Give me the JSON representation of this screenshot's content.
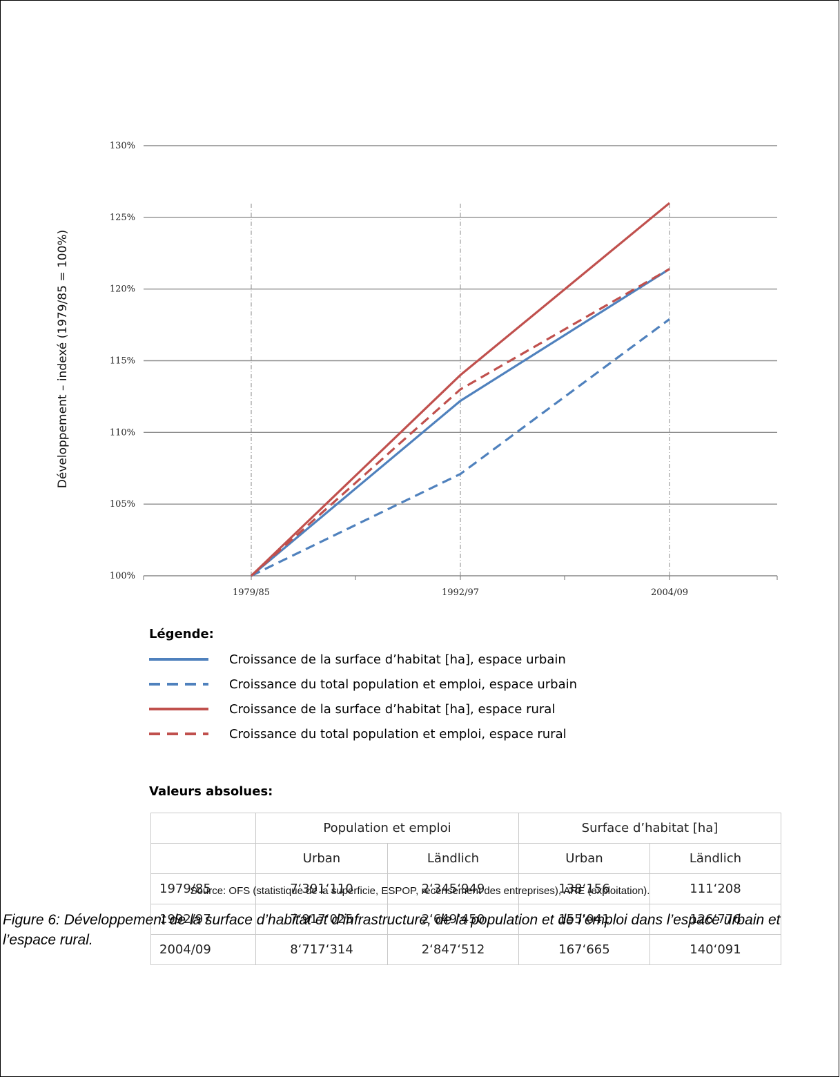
{
  "chart_data": {
    "type": "line",
    "x": [
      "1979/85",
      "1992/97",
      "2004/09"
    ],
    "ylabel": "Développement – indexé (1979/85 = 100%)",
    "ylim": [
      100,
      130
    ],
    "yticks": [
      "100%",
      "105%",
      "110%",
      "115%",
      "120%",
      "125%",
      "130%"
    ],
    "grid": true,
    "series": [
      {
        "name": "Croissance de la surface d’habitat [ha], espace urbain",
        "values": [
          100,
          112.2,
          121.4
        ],
        "color": "#4F81BD",
        "style": "solid"
      },
      {
        "name": "Croissance du total population et emploi, espace urbain",
        "values": [
          100,
          107.1,
          117.9
        ],
        "color": "#4F81BD",
        "style": "dashed"
      },
      {
        "name": "Croissance de la surface d’habitat [ha], espace rural",
        "values": [
          100,
          114.0,
          126.0
        ],
        "color": "#C0504D",
        "style": "solid"
      },
      {
        "name": "Croissance du total population et emploi, espace rural",
        "values": [
          100,
          113.0,
          121.4
        ],
        "color": "#C0504D",
        "style": "dashed"
      }
    ]
  },
  "legend": {
    "title": "Légende:"
  },
  "table": {
    "title": "Valeurs absolues:",
    "group_headers": [
      "Population et emploi",
      "Surface d’habitat [ha]"
    ],
    "sub_headers": [
      "Urban",
      "Ländlich",
      "Urban",
      "Ländlich"
    ],
    "rows": [
      {
        "label": "1979/85",
        "cells": [
          "7‘391‘110",
          "2‘345‘949",
          "138‘156",
          "111‘208"
        ]
      },
      {
        "label": "1992/97",
        "cells": [
          "7‘917‘025",
          "2‘649‘450",
          "155‘041",
          "126‘776"
        ]
      },
      {
        "label": "2004/09",
        "cells": [
          "8‘717‘314",
          "2‘847‘512",
          "167‘665",
          "140‘091"
        ]
      }
    ]
  },
  "source": "Source: OFS (statistique de la superficie, ESPOP, recensement des entreprises), ARE (exploitation).",
  "caption": "Figure 6: Développement de la surface d’habitat et d’infrastructure, de la population et de l’emploi dans l’espace urbain et l’espace rural."
}
